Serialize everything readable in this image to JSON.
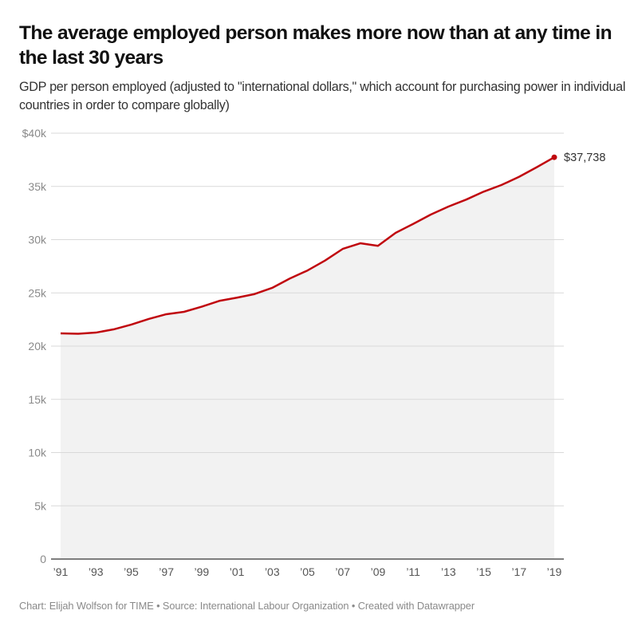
{
  "header": {
    "title": "The average employed person makes more now than at any time in the last 30 years",
    "subtitle": "GDP per person employed (adjusted to \"international dollars,\" which account for purchasing power in individual countries in order to compare globally)"
  },
  "footer": {
    "text": "Chart: Elijah Wolfson for TIME • Source: International Labour Organization • Created with Datawrapper"
  },
  "colors": {
    "line": "#c0070e",
    "area": "#f2f2f2",
    "grid": "#d9d9d9",
    "axis": "#555555"
  },
  "chart_data": {
    "type": "area",
    "title": "The average employed person makes more now than at any time in the last 30 years",
    "subtitle": "GDP per person employed (adjusted to \"international dollars,\" which account for purchasing power in individual countries in order to compare globally)",
    "xlabel": "",
    "ylabel": "",
    "x": [
      1991,
      1992,
      1993,
      1994,
      1995,
      1996,
      1997,
      1998,
      1999,
      2000,
      2001,
      2002,
      2003,
      2004,
      2005,
      2006,
      2007,
      2008,
      2009,
      2010,
      2011,
      2012,
      2013,
      2014,
      2015,
      2016,
      2017,
      2018,
      2019
    ],
    "series": [
      {
        "name": "GDP per person employed",
        "values": [
          21200,
          21160,
          21270,
          21570,
          22020,
          22550,
          23000,
          23220,
          23700,
          24250,
          24550,
          24890,
          25470,
          26350,
          27100,
          28040,
          29130,
          29660,
          29420,
          30640,
          31480,
          32360,
          33110,
          33760,
          34510,
          35130,
          35900,
          36800,
          37738
        ]
      }
    ],
    "ylim": [
      0,
      40000
    ],
    "yticks": [
      0,
      5000,
      10000,
      15000,
      20000,
      25000,
      30000,
      35000,
      40000
    ],
    "ytick_labels": [
      "0",
      "5k",
      "10k",
      "15k",
      "20k",
      "25k",
      "30k",
      "35k",
      "$40k"
    ],
    "xticks": [
      1991,
      1993,
      1995,
      1997,
      1999,
      2001,
      2003,
      2005,
      2007,
      2009,
      2011,
      2013,
      2015,
      2017,
      2019
    ],
    "xtick_labels": [
      "’91",
      "’93",
      "’95",
      "’97",
      "’99",
      "’01",
      "’03",
      "’05",
      "’07",
      "’09",
      "’11",
      "’13",
      "’15",
      "’17",
      "’19"
    ],
    "annotations": [
      {
        "x": 2019,
        "text": "$37,738"
      }
    ],
    "grid": true,
    "legend": "none"
  }
}
